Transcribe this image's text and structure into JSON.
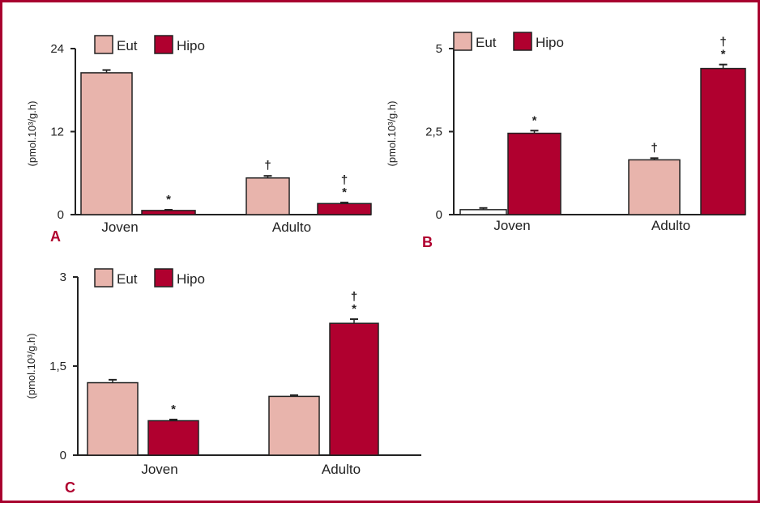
{
  "colors": {
    "border": "#a8002f",
    "eut": "#e8b4ac",
    "hipo": "#b0002f",
    "axis": "#222222",
    "panel_letter": "#b0002f"
  },
  "chart_data": [
    {
      "type": "bar",
      "panel_label": "A",
      "ylabel": "(pmol.10³/g.h)",
      "categories": [
        "Joven",
        "Adulto"
      ],
      "yticks": [
        "0",
        "12",
        "24"
      ],
      "ylim": [
        0,
        24
      ],
      "legend": {
        "placement": "top-left"
      },
      "series": [
        {
          "name": "Eut",
          "values": [
            20.5,
            5.3
          ],
          "errors": [
            0.4,
            0.3
          ]
        },
        {
          "name": "Hipo",
          "values": [
            0.6,
            1.6
          ],
          "errors": [
            0.1,
            0.15
          ]
        }
      ],
      "annotations": [
        {
          "category": 0,
          "series": 1,
          "text": "*"
        },
        {
          "category": 1,
          "series": 0,
          "text": "†"
        },
        {
          "category": 1,
          "series": 1,
          "text": "†"
        },
        {
          "category": 1,
          "series": 1,
          "text": "*"
        }
      ]
    },
    {
      "type": "bar",
      "panel_label": "B",
      "ylabel": "(pmol.10³/g.h)",
      "categories": [
        "Joven",
        "Adulto"
      ],
      "yticks": [
        "0",
        "2,5",
        "5"
      ],
      "ylim": [
        0,
        5
      ],
      "legend": {
        "placement": "top-left"
      },
      "series": [
        {
          "name": "Eut",
          "values": [
            0.15,
            1.65
          ],
          "errors": [
            0.05,
            0.05
          ]
        },
        {
          "name": "Hipo",
          "values": [
            2.45,
            4.4
          ],
          "errors": [
            0.08,
            0.12
          ]
        }
      ],
      "annotations": [
        {
          "category": 0,
          "series": 1,
          "text": "*"
        },
        {
          "category": 1,
          "series": 0,
          "text": "†"
        },
        {
          "category": 1,
          "series": 1,
          "text": "†"
        },
        {
          "category": 1,
          "series": 1,
          "text": "*"
        }
      ]
    },
    {
      "type": "bar",
      "panel_label": "C",
      "ylabel": "(pmol.10³/g.h)",
      "categories": [
        "Joven",
        "Adulto"
      ],
      "yticks": [
        "0",
        "1,5",
        "3"
      ],
      "ylim": [
        0,
        3
      ],
      "legend": {
        "placement": "top-left"
      },
      "series": [
        {
          "name": "Eut",
          "values": [
            1.22,
            0.99
          ],
          "errors": [
            0.05,
            0.02
          ]
        },
        {
          "name": "Hipo",
          "values": [
            0.58,
            2.22
          ],
          "errors": [
            0.02,
            0.07
          ]
        }
      ],
      "annotations": [
        {
          "category": 0,
          "series": 1,
          "text": "*"
        },
        {
          "category": 1,
          "series": 1,
          "text": "†"
        },
        {
          "category": 1,
          "series": 1,
          "text": "*"
        }
      ]
    }
  ]
}
